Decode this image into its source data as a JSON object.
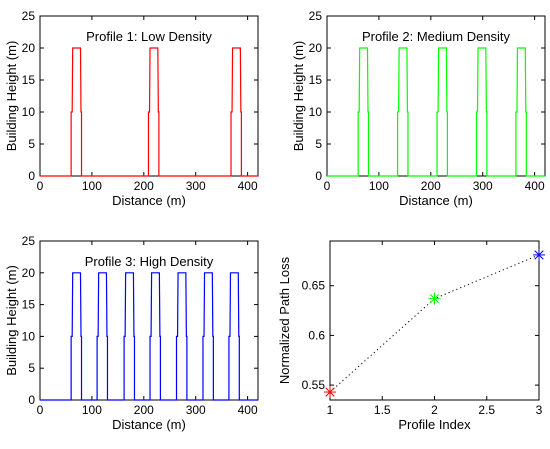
{
  "chart_data": [
    {
      "type": "line",
      "title": "Profile 1: Low Density",
      "xlabel": "Distance (m)",
      "ylabel": "Building Height (m)",
      "xlim": [
        0,
        420
      ],
      "ylim": [
        0,
        25
      ],
      "xticks": [
        "0",
        "100",
        "200",
        "300",
        "400"
      ],
      "yticks": [
        "0",
        "5",
        "10",
        "15",
        "20",
        "25"
      ],
      "grid": false,
      "color": "#ff0000",
      "series": [
        {
          "x": [
            0,
            60,
            60,
            62,
            63,
            78,
            79,
            80,
            80,
            209,
            209,
            211,
            212,
            227,
            228,
            229,
            229,
            368,
            368,
            370,
            371,
            386,
            387,
            388,
            388,
            420
          ],
          "y": [
            0,
            0,
            10,
            10,
            20,
            20,
            10,
            10,
            0,
            0,
            10,
            10,
            20,
            20,
            10,
            10,
            0,
            0,
            10,
            10,
            20,
            20,
            10,
            10,
            0,
            0
          ]
        }
      ]
    },
    {
      "type": "line",
      "title": "Profile 2: Medium Density",
      "xlabel": "Distance (m)",
      "ylabel": "Building Height (m)",
      "xlim": [
        0,
        420
      ],
      "ylim": [
        0,
        25
      ],
      "xticks": [
        "0",
        "100",
        "200",
        "300",
        "400"
      ],
      "yticks": [
        "0",
        "5",
        "10",
        "15",
        "20",
        "25"
      ],
      "grid": false,
      "color": "#00ff00",
      "series": [
        {
          "x": [
            0,
            60,
            60,
            62,
            63,
            78,
            79,
            80,
            80,
            136,
            136,
            138,
            139,
            154,
            155,
            156,
            156,
            212,
            212,
            214,
            215,
            230,
            231,
            232,
            232,
            288,
            288,
            290,
            291,
            306,
            307,
            308,
            308,
            364,
            364,
            366,
            367,
            382,
            383,
            384,
            384,
            420
          ],
          "y": [
            0,
            0,
            10,
            10,
            20,
            20,
            10,
            10,
            0,
            0,
            10,
            10,
            20,
            20,
            10,
            10,
            0,
            0,
            10,
            10,
            20,
            20,
            10,
            10,
            0,
            0,
            10,
            10,
            20,
            20,
            10,
            10,
            0,
            0,
            10,
            10,
            20,
            20,
            10,
            10,
            0,
            0
          ]
        }
      ]
    },
    {
      "type": "line",
      "title": "Profile 3: High Density",
      "xlabel": "Distance (m)",
      "ylabel": "Building Height (m)",
      "xlim": [
        0,
        420
      ],
      "ylim": [
        0,
        25
      ],
      "xticks": [
        "0",
        "100",
        "200",
        "300",
        "400"
      ],
      "yticks": [
        "0",
        "5",
        "10",
        "15",
        "20",
        "25"
      ],
      "grid": false,
      "color": "#0000ff",
      "series": [
        {
          "x": [
            0,
            60,
            60,
            62,
            63,
            78,
            79,
            80,
            80,
            110,
            110,
            112,
            113,
            128,
            129,
            130,
            130,
            162,
            162,
            164,
            165,
            180,
            181,
            182,
            182,
            212,
            212,
            214,
            215,
            230,
            231,
            232,
            232,
            263,
            263,
            265,
            266,
            281,
            282,
            283,
            283,
            314,
            314,
            316,
            317,
            332,
            333,
            334,
            334,
            364,
            364,
            366,
            367,
            382,
            383,
            384,
            384,
            420
          ],
          "y": [
            0,
            0,
            10,
            10,
            20,
            20,
            10,
            10,
            0,
            0,
            10,
            10,
            20,
            20,
            10,
            10,
            0,
            0,
            10,
            10,
            20,
            20,
            10,
            10,
            0,
            0,
            10,
            10,
            20,
            20,
            10,
            10,
            0,
            0,
            10,
            10,
            20,
            20,
            10,
            10,
            0,
            0,
            10,
            10,
            20,
            20,
            10,
            10,
            0,
            0,
            10,
            10,
            20,
            20,
            10,
            10,
            0,
            0
          ]
        }
      ]
    },
    {
      "type": "scatter",
      "title": "",
      "xlabel": "Profile Index",
      "ylabel": "Normalized Path Loss",
      "xlim": [
        1,
        3
      ],
      "ylim": [
        0.535,
        0.695
      ],
      "xticks": [
        "1",
        "1.5",
        "2",
        "2.5",
        "3"
      ],
      "yticks": [
        "0.55",
        "0.6",
        "0.65"
      ],
      "grid": false,
      "line_style": "dotted",
      "line_color": "#000000",
      "series": [
        {
          "x": [
            1,
            2,
            3
          ],
          "y": [
            0.543,
            0.637,
            0.681
          ],
          "marker": "asterisk",
          "marker_colors": [
            "#ff0000",
            "#00ff00",
            "#0000ff"
          ]
        }
      ]
    }
  ]
}
